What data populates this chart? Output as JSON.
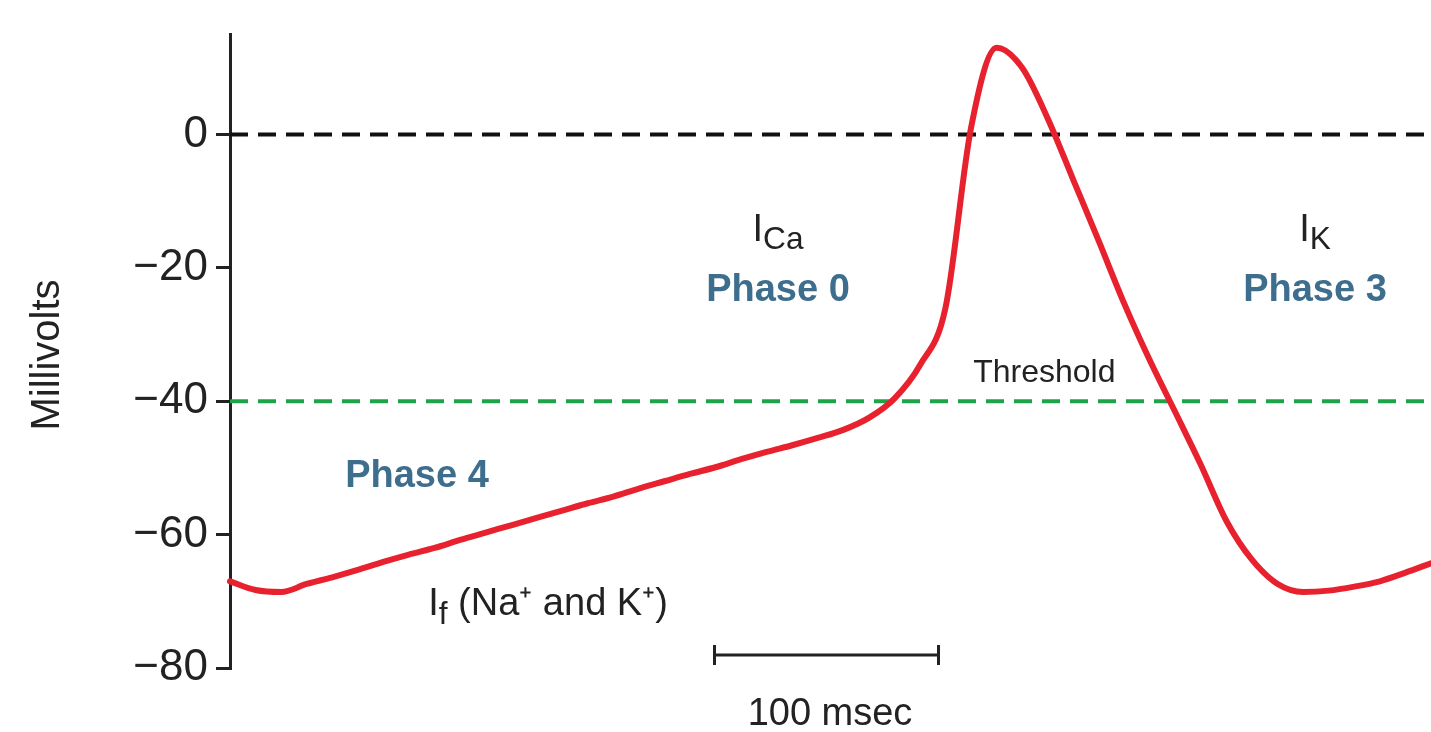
{
  "chart_data": {
    "type": "line",
    "ylabel": "Millivolts",
    "categories": [
      null,
      null,
      null,
      null,
      null,
      null,
      null,
      null,
      null,
      null,
      null,
      null,
      null,
      null,
      null,
      null,
      null,
      null,
      null,
      null,
      null,
      null,
      null,
      null,
      null,
      null,
      null,
      null,
      null,
      null,
      null,
      null,
      null,
      null,
      null,
      null,
      null,
      null,
      null,
      null,
      null,
      null,
      null,
      null,
      null,
      null,
      null,
      null
    ],
    "series": [
      {
        "color": "#e8212e",
        "values": [
          -67,
          -68.3,
          -68.6,
          -67.4,
          -66.4,
          -65.3,
          -64.1,
          -63,
          -62,
          -60.8,
          -59.7,
          -58.6,
          -57.5,
          -56.4,
          -55.3,
          -54.3,
          -53.1,
          -52,
          -50.9,
          -49.9,
          -48.7,
          -47.6,
          -46.6,
          -45.5,
          -44.3,
          -42.5,
          -39.6,
          -34.6,
          -26,
          1,
          13,
          10,
          2.4,
          -6.8,
          -16,
          -25.4,
          -33.9,
          -41.7,
          -49.6,
          -58,
          -63.8,
          -67.4,
          -68.6,
          -68.4,
          -67.8,
          -67,
          -65.7,
          -64.3
        ]
      }
    ],
    "ylim": [
      -80,
      15
    ],
    "yticks": [
      -80,
      -60,
      -40,
      -20,
      0
    ],
    "ref_lines": [
      {
        "axis": "y",
        "value": 0,
        "color": "#111111",
        "line_style": "dashed"
      },
      {
        "axis": "y",
        "value": -40,
        "label": "Threshold",
        "color": "#1fa34a",
        "line_style": "dashed"
      }
    ],
    "annotations": [
      "I$_{Ca}$",
      "Phase 0",
      "I$_{K}$",
      "Phase 3",
      "Phase 4",
      "I$_{f}$ (Na⁺ and K⁺)",
      "100 msec"
    ],
    "grid": false,
    "legend": false,
    "marker": "none",
    "line_style": "solid",
    "tick_labels": "y"
  }
}
